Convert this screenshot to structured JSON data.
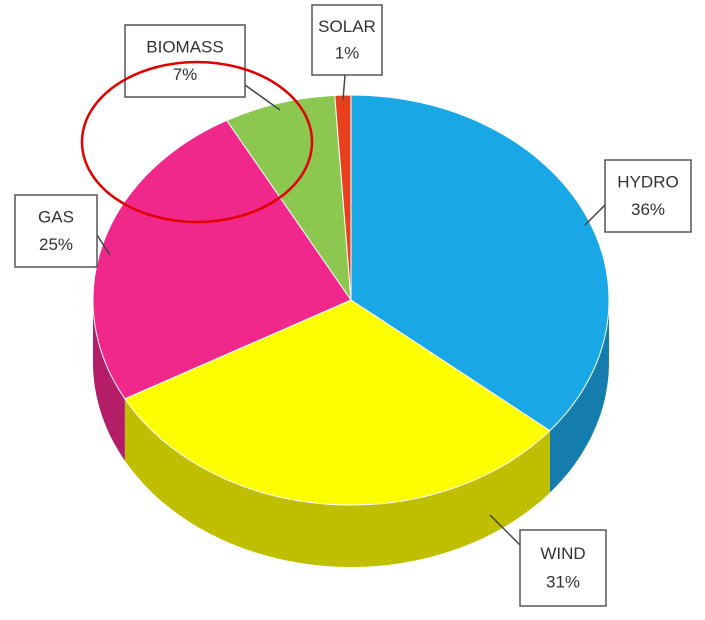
{
  "chart_data": {
    "type": "pie",
    "categories": [
      "HYDRO",
      "WIND",
      "GAS",
      "BIOMASS",
      "SOLAR"
    ],
    "values": [
      36,
      31,
      25,
      7,
      1
    ],
    "value_labels": [
      "36%",
      "31%",
      "25%",
      "7%",
      "1%"
    ],
    "colors": [
      "#1aa7e6",
      "#ffff00",
      "#f0288c",
      "#8cc850",
      "#e8401c"
    ]
  }
}
